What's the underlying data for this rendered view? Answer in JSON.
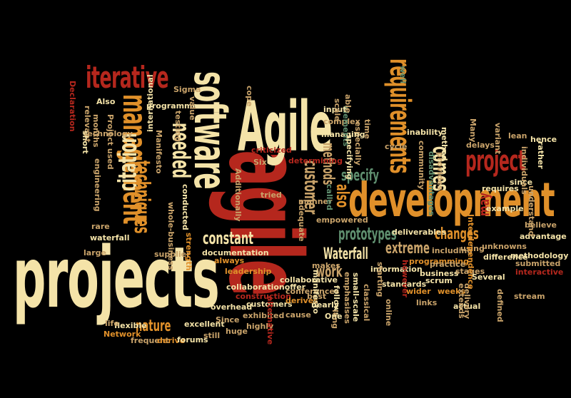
{
  "colors": {
    "background": "#000000",
    "cream": "#f4e3a8",
    "orange": "#e0902a",
    "red": "#b5271d",
    "green": "#5f8f6f",
    "tan": "#c9a36a"
  },
  "words": {
    "projects": "projects",
    "agile_lower": "agile",
    "agile_cap": "Agile",
    "development": "development",
    "software": "software",
    "management": "management",
    "iterative": "iterative",
    "requirements": "requirements",
    "project": "project",
    "citation": "citation",
    "techniques": "techniques",
    "needed": "needed",
    "comes": "comes",
    "customer": "customer",
    "also": "also",
    "specify": "specify",
    "methods": "methods",
    "prototypes": "prototypes",
    "changes": "changes",
    "constant": "constant",
    "waterfall_cap": "Waterfall",
    "extreme": "extreme",
    "work": "work",
    "nature": "nature",
    "may": "may",
    "empowered": "empowered",
    "deliverables": "deliverables",
    "scrum": "scrum",
    "documentation": "documentation",
    "supplier": "supplier",
    "collaboration_offer": "collaborationoffer",
    "construction": "construction",
    "excellent": "excellent",
    "flexible": "flexible",
    "network": "Network",
    "frequent": "frequent",
    "derive": "derive",
    "life": "life",
    "large": "large",
    "waterfall_lower": "waterfall",
    "technology": "technology",
    "declaration": "Declaration",
    "also_cap": "Also",
    "sigma": "Sigma",
    "programme": "programme",
    "testing": "testing",
    "value": "value",
    "international": "international",
    "manifesto_cap": "Manifesto",
    "engineering": "engineering",
    "criticized": "criticized",
    "six": "Six",
    "additionally": "Additionally",
    "determining": "determining",
    "conducted": "conducted",
    "whole_business": "whole-business",
    "strength": "strength",
    "always": "always",
    "leadership": "leadership",
    "overhead": "overhead",
    "huge": "huge",
    "since_cap": "Since",
    "still": "still",
    "forums": "forums",
    "exhibited": "exhibited",
    "customers": "customers",
    "highly": "highly",
    "conferences": "conferences",
    "nearly": "nearly",
    "derives": "derives",
    "cause": "cause",
    "best": "best",
    "alternative": "alternative",
    "collaborative": "collaborative",
    "makes": "makes",
    "manifesto": "manifesto",
    "follows": "follows",
    "long": "long",
    "one": "One",
    "emphasises": "emphasises",
    "small_scale": "small-scale",
    "classical": "classical",
    "information": "information",
    "standards": "standards",
    "online": "online",
    "wider": "wider",
    "links": "links",
    "business": "business",
    "weeks": "weeks",
    "stages": "stages",
    "actual": "actual",
    "programming": "programming",
    "practice": "practice",
    "including": "including",
    "however": "however",
    "starting": "starting",
    "several": "Several",
    "using": "using",
    "extends": "extends",
    "delivery": "delivery",
    "difference": "difference",
    "unknowns": "unknowns",
    "interdependence": "Interdependence",
    "stream": "stream",
    "interactive": "interactive",
    "submitted": "submitted",
    "defined": "defined",
    "methodology": "methodology",
    "advantage": "advantage",
    "believe": "believe",
    "understand": "understand",
    "example": "example",
    "requires": "requires",
    "since_lower": "since",
    "individuals": "individuals",
    "lean": "lean",
    "hence": "hence",
    "rather": "rather",
    "variant": "variant",
    "many": "Many",
    "delays": "delays",
    "method": "method",
    "provides": "provides",
    "disadvantages": "disadvantages",
    "community": "community",
    "inability": "inability",
    "cycle": "cycle",
    "time": "time",
    "especially": "especially",
    "managing": "managing",
    "complex": "complex",
    "elements": "elements",
    "input": "input",
    "scale": "scale",
    "able": "able",
    "well": "well",
    "cope": "cope",
    "tried": "tried",
    "manner": "manner",
    "adequate": "adequate",
    "called": "called",
    "specifying": "specifying",
    "relevant": "relevant",
    "months": "months",
    "project_used": "Project used",
    "rare": "rare",
    "short": "short"
  }
}
